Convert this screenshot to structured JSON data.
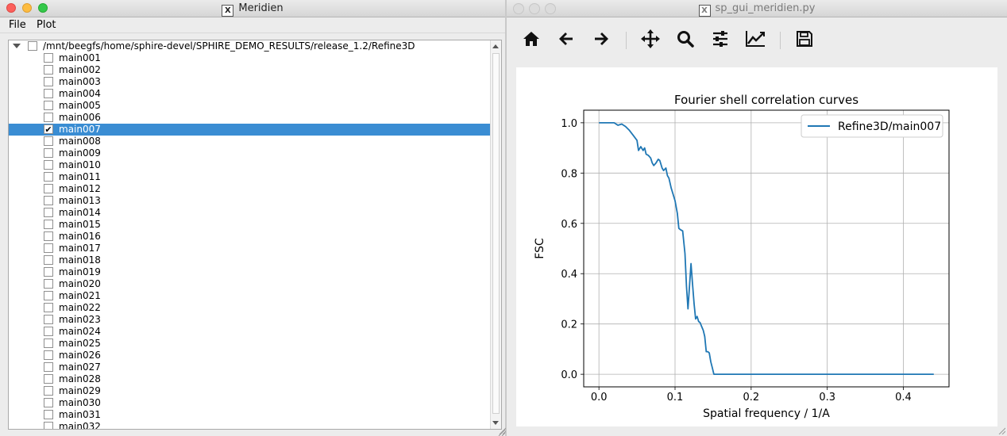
{
  "left_window": {
    "title": "Meridien",
    "menu": [
      {
        "label": "File"
      },
      {
        "label": "Plot"
      }
    ],
    "tree": {
      "root_path": "/mnt/beegfs/home/sphire-devel/SPHIRE_DEMO_RESULTS/release_1.2/Refine3D",
      "items": [
        {
          "label": "main001",
          "checked": false,
          "selected": false
        },
        {
          "label": "main002",
          "checked": false,
          "selected": false
        },
        {
          "label": "main003",
          "checked": false,
          "selected": false
        },
        {
          "label": "main004",
          "checked": false,
          "selected": false
        },
        {
          "label": "main005",
          "checked": false,
          "selected": false
        },
        {
          "label": "main006",
          "checked": false,
          "selected": false
        },
        {
          "label": "main007",
          "checked": true,
          "selected": true
        },
        {
          "label": "main008",
          "checked": false,
          "selected": false
        },
        {
          "label": "main009",
          "checked": false,
          "selected": false
        },
        {
          "label": "main010",
          "checked": false,
          "selected": false
        },
        {
          "label": "main011",
          "checked": false,
          "selected": false
        },
        {
          "label": "main012",
          "checked": false,
          "selected": false
        },
        {
          "label": "main013",
          "checked": false,
          "selected": false
        },
        {
          "label": "main014",
          "checked": false,
          "selected": false
        },
        {
          "label": "main015",
          "checked": false,
          "selected": false
        },
        {
          "label": "main016",
          "checked": false,
          "selected": false
        },
        {
          "label": "main017",
          "checked": false,
          "selected": false
        },
        {
          "label": "main018",
          "checked": false,
          "selected": false
        },
        {
          "label": "main019",
          "checked": false,
          "selected": false
        },
        {
          "label": "main020",
          "checked": false,
          "selected": false
        },
        {
          "label": "main021",
          "checked": false,
          "selected": false
        },
        {
          "label": "main022",
          "checked": false,
          "selected": false
        },
        {
          "label": "main023",
          "checked": false,
          "selected": false
        },
        {
          "label": "main024",
          "checked": false,
          "selected": false
        },
        {
          "label": "main025",
          "checked": false,
          "selected": false
        },
        {
          "label": "main026",
          "checked": false,
          "selected": false
        },
        {
          "label": "main027",
          "checked": false,
          "selected": false
        },
        {
          "label": "main028",
          "checked": false,
          "selected": false
        },
        {
          "label": "main029",
          "checked": false,
          "selected": false
        },
        {
          "label": "main030",
          "checked": false,
          "selected": false
        },
        {
          "label": "main031",
          "checked": false,
          "selected": false
        },
        {
          "label": "main032",
          "checked": false,
          "selected": false
        }
      ]
    }
  },
  "right_window": {
    "title": "sp_gui_meridien.py",
    "toolbar": [
      {
        "name": "home-icon"
      },
      {
        "name": "back-arrow-icon"
      },
      {
        "name": "forward-arrow-icon"
      },
      {
        "name": "pan-move-icon"
      },
      {
        "name": "zoom-magnifier-icon"
      },
      {
        "name": "configure-subplots-icon"
      },
      {
        "name": "edit-axis-curve-icon"
      },
      {
        "name": "save-floppy-icon"
      }
    ]
  },
  "chart_data": {
    "type": "line",
    "title": "Fourier shell correlation curves",
    "xlabel": "Spatial frequency / 1/A",
    "ylabel": "FSC",
    "xlim": [
      -0.02,
      0.46
    ],
    "ylim": [
      -0.05,
      1.05
    ],
    "xticks": [
      "0.0",
      "0.1",
      "0.2",
      "0.3",
      "0.4"
    ],
    "xtick_values": [
      0.0,
      0.1,
      0.2,
      0.3,
      0.4
    ],
    "yticks": [
      "0.0",
      "0.2",
      "0.4",
      "0.6",
      "0.8",
      "1.0"
    ],
    "ytick_values": [
      0.0,
      0.2,
      0.4,
      0.6,
      0.8,
      1.0
    ],
    "grid": true,
    "legend_position": "top-right",
    "series": [
      {
        "name": "Refine3D/main007",
        "color": "#1f77b4",
        "x": [
          0.0,
          0.01,
          0.02,
          0.025,
          0.03,
          0.035,
          0.04,
          0.045,
          0.05,
          0.052,
          0.055,
          0.058,
          0.06,
          0.062,
          0.065,
          0.068,
          0.07,
          0.072,
          0.075,
          0.078,
          0.08,
          0.083,
          0.085,
          0.088,
          0.09,
          0.092,
          0.095,
          0.098,
          0.1,
          0.103,
          0.105,
          0.107,
          0.11,
          0.113,
          0.115,
          0.117,
          0.119,
          0.121,
          0.123,
          0.125,
          0.127,
          0.129,
          0.131,
          0.133,
          0.135,
          0.137,
          0.139,
          0.141,
          0.143,
          0.145,
          0.147,
          0.149,
          0.151,
          0.153,
          0.155,
          0.157,
          0.16,
          0.18,
          0.2,
          0.25,
          0.3,
          0.35,
          0.4,
          0.44
        ],
        "y": [
          1.0,
          1.0,
          1.0,
          0.99,
          0.995,
          0.985,
          0.97,
          0.95,
          0.93,
          0.89,
          0.905,
          0.89,
          0.9,
          0.875,
          0.87,
          0.86,
          0.84,
          0.83,
          0.84,
          0.855,
          0.85,
          0.82,
          0.81,
          0.82,
          0.79,
          0.78,
          0.74,
          0.71,
          0.69,
          0.64,
          0.58,
          0.575,
          0.57,
          0.48,
          0.35,
          0.26,
          0.35,
          0.44,
          0.36,
          0.28,
          0.22,
          0.23,
          0.21,
          0.205,
          0.19,
          0.175,
          0.15,
          0.09,
          0.09,
          0.085,
          0.05,
          0.025,
          0.0,
          0.0,
          0.0,
          0.0,
          0.0,
          0.0,
          0.0,
          0.0,
          0.0,
          0.0,
          0.0,
          0.0
        ]
      }
    ]
  }
}
